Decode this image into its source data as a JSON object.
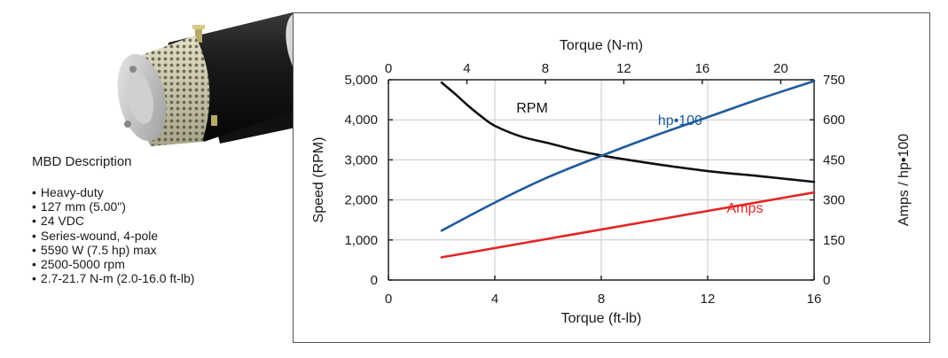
{
  "description": {
    "title": "MBD Description",
    "specs": [
      "Heavy-duty",
      "127 mm (5.00\")",
      "24 VDC",
      "Series-wound, 4-pole",
      "5590 W (7.5 hp) max",
      "2500-5000 rpm",
      "2.7-21.7 N-m (2.0-16.0 ft-lb)"
    ]
  },
  "colors": {
    "rpm": "#111111",
    "hp": "#1f5a9c",
    "amps": "#e32626",
    "grid": "#c8c8c8",
    "axis": "#222222"
  },
  "chart_data": {
    "type": "line",
    "title": "",
    "xlabel": "Torque (ft-lb)",
    "x_ticks": [
      "0",
      "4",
      "8",
      "12",
      "16"
    ],
    "xlim": [
      0,
      16
    ],
    "x2label": "Torque (N-m)",
    "x2_ticks": [
      "0",
      "4",
      "8",
      "12",
      "16",
      "20"
    ],
    "x2lim": [
      0,
      21.7
    ],
    "ylabel": "Speed (RPM)",
    "y_ticks": [
      "0",
      "1,000",
      "2,000",
      "3,000",
      "4,000",
      "5,000"
    ],
    "ylim": [
      0,
      5000
    ],
    "y2label": "Amps / hp•100",
    "y2_ticks": [
      "0",
      "150",
      "300",
      "450",
      "600",
      "750"
    ],
    "y2lim": [
      0,
      750
    ],
    "grid": true,
    "series": [
      {
        "name": "RPM",
        "axis": "left",
        "color_key": "rpm",
        "x": [
          2.0,
          2.5,
          3.0,
          3.5,
          4.0,
          5.0,
          6.0,
          7.0,
          8.0,
          10.0,
          12.0,
          14.0,
          16.0
        ],
        "y": [
          4930,
          4650,
          4350,
          4080,
          3850,
          3580,
          3420,
          3250,
          3110,
          2900,
          2720,
          2590,
          2450
        ]
      },
      {
        "name": "hp•100",
        "axis": "right",
        "color_key": "hp",
        "x": [
          2.0,
          4.0,
          6.0,
          8.0,
          10.0,
          12.0,
          14.0,
          16.0
        ],
        "y": [
          185,
          290,
          385,
          465,
          540,
          610,
          680,
          745
        ]
      },
      {
        "name": "Amps",
        "axis": "right",
        "color_key": "amps",
        "x": [
          2.0,
          16.0
        ],
        "y": [
          85,
          328
        ]
      }
    ]
  }
}
